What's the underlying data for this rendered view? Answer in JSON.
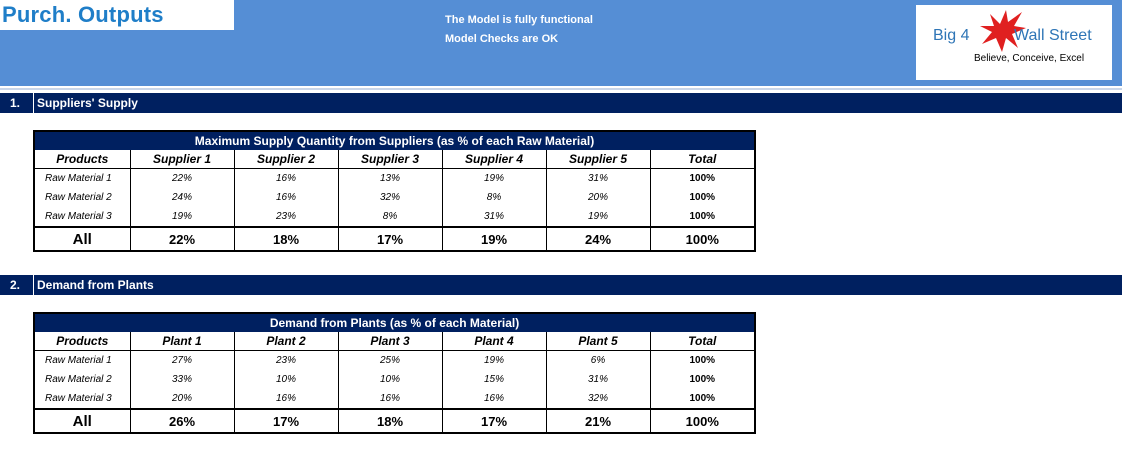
{
  "header": {
    "title": "Purch. Outputs",
    "status_line1": "The Model is fully functional",
    "status_line2": "Model Checks are OK",
    "logo": {
      "text_left": "Big 4",
      "text_right": "Wall Street",
      "tagline": "Believe, Conceive, Excel",
      "icon": "eagle-icon",
      "accent_color": "#e02020"
    }
  },
  "colors": {
    "header_bg": "#558ed5",
    "navy": "#002060",
    "title": "#1f7ec8"
  },
  "sections": [
    {
      "number": "1.",
      "label": "Suppliers' Supply",
      "table": {
        "caption": "Maximum Supply Quantity from Suppliers (as % of each Raw Material)",
        "columns": [
          "Products",
          "Supplier 1",
          "Supplier 2",
          "Supplier 3",
          "Supplier 4",
          "Supplier 5",
          "Total"
        ],
        "rows": [
          [
            "Raw Material 1",
            "22%",
            "16%",
            "13%",
            "19%",
            "31%",
            "100%"
          ],
          [
            "Raw Material 2",
            "24%",
            "16%",
            "32%",
            "8%",
            "20%",
            "100%"
          ],
          [
            "Raw Material 3",
            "19%",
            "23%",
            "8%",
            "31%",
            "19%",
            "100%"
          ]
        ],
        "total_row": [
          "All",
          "22%",
          "18%",
          "17%",
          "19%",
          "24%",
          "100%"
        ]
      }
    },
    {
      "number": "2.",
      "label": "Demand from Plants",
      "table": {
        "caption": "Demand from Plants (as % of each Material)",
        "columns": [
          "Products",
          "Plant 1",
          "Plant 2",
          "Plant 3",
          "Plant 4",
          "Plant 5",
          "Total"
        ],
        "rows": [
          [
            "Raw Material 1",
            "27%",
            "23%",
            "25%",
            "19%",
            "6%",
            "100%"
          ],
          [
            "Raw Material 2",
            "33%",
            "10%",
            "10%",
            "15%",
            "31%",
            "100%"
          ],
          [
            "Raw Material 3",
            "20%",
            "16%",
            "16%",
            "16%",
            "32%",
            "100%"
          ]
        ],
        "total_row": [
          "All",
          "26%",
          "17%",
          "18%",
          "17%",
          "21%",
          "100%"
        ]
      }
    }
  ]
}
